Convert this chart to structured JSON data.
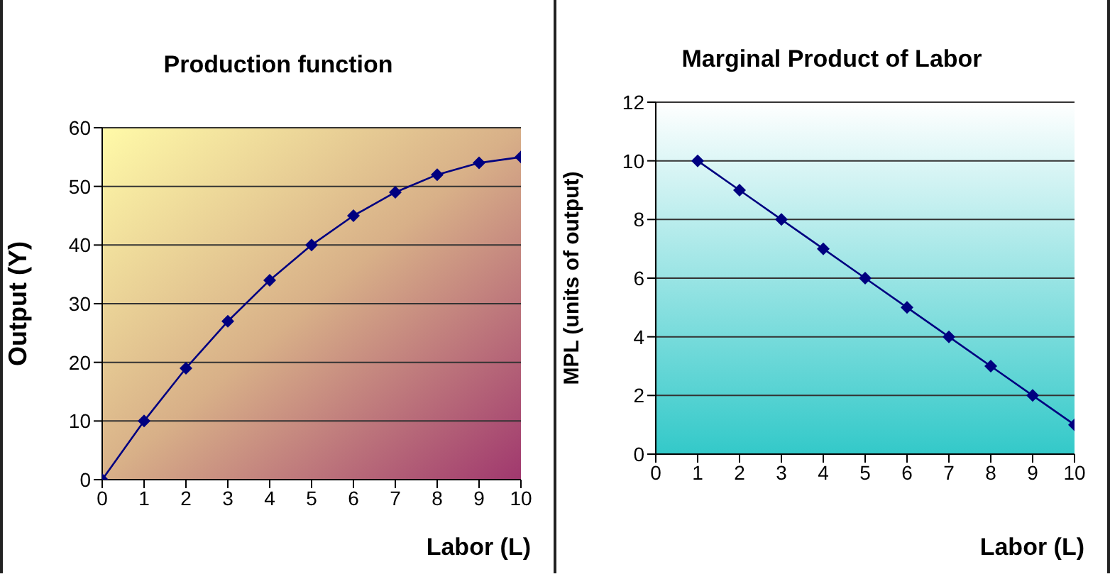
{
  "chart_data": [
    {
      "type": "line",
      "title": "Production function",
      "xlabel": "Labor (L)",
      "ylabel": "Output (Y)",
      "x": [
        0,
        1,
        2,
        3,
        4,
        5,
        6,
        7,
        8,
        9,
        10
      ],
      "series": [
        {
          "color": "#000080",
          "values": [
            0,
            10,
            19,
            27,
            34,
            40,
            45,
            49,
            52,
            54,
            55
          ]
        }
      ],
      "xlim": [
        0,
        10
      ],
      "xticks": [
        0,
        1,
        2,
        3,
        4,
        5,
        6,
        7,
        8,
        9,
        10
      ],
      "ylim": [
        0,
        60
      ],
      "yticks": [
        0,
        10,
        20,
        30,
        40,
        50,
        60
      ],
      "grid": "y",
      "legend": false,
      "marker": "diamond",
      "line_style": "solid"
    },
    {
      "type": "line",
      "title": "Marginal Product of Labor",
      "xlabel": "Labor (L)",
      "ylabel": "MPL (units of output)",
      "x": [
        1,
        2,
        3,
        4,
        5,
        6,
        7,
        8,
        9,
        10
      ],
      "series": [
        {
          "color": "#000080",
          "values": [
            10,
            9,
            8,
            7,
            6,
            5,
            4,
            3,
            2,
            1
          ]
        }
      ],
      "xlim": [
        0,
        10
      ],
      "xticks": [
        0,
        1,
        2,
        3,
        4,
        5,
        6,
        7,
        8,
        9,
        10
      ],
      "ylim": [
        0,
        12
      ],
      "yticks": [
        0,
        2,
        4,
        6,
        8,
        10,
        12
      ],
      "grid": "y",
      "legend": false,
      "marker": "diamond",
      "line_style": "solid"
    }
  ]
}
